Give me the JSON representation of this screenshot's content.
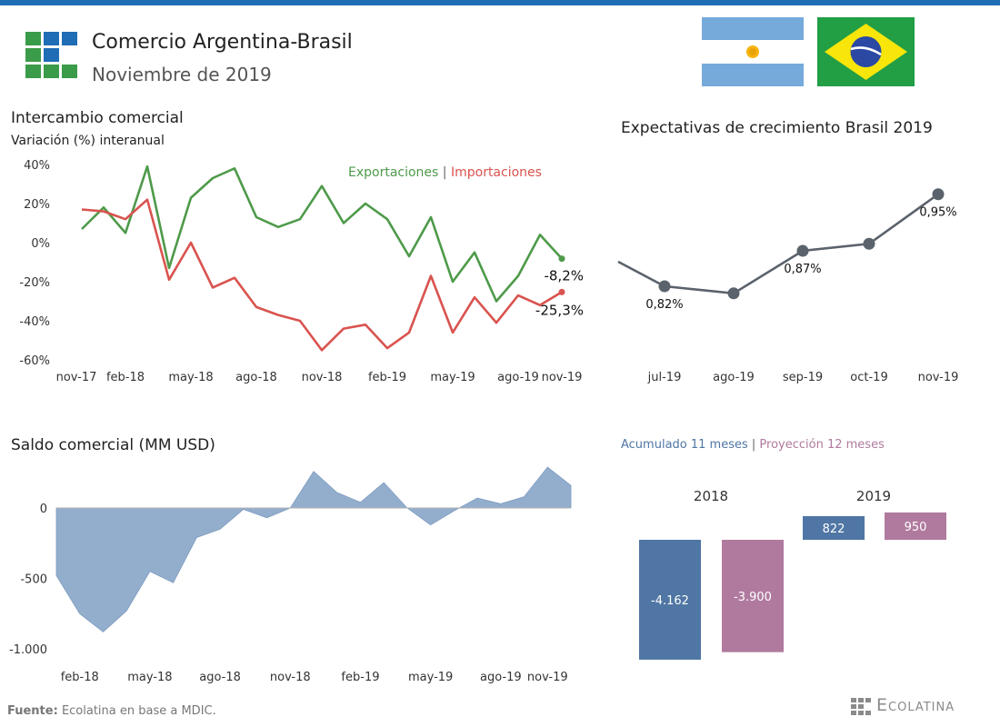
{
  "header": {
    "title": "Comercio Argentina-Brasil",
    "subtitle": "Noviembre de 2019"
  },
  "colors": {
    "blue_bar": "#1f6db5",
    "logo_blue": "#1f6db5",
    "logo_green": "#3a9b48",
    "exports": "#4e9a4a",
    "imports": "#d9534f",
    "gray_line": "#5a626b",
    "area": "#93aecd",
    "acum": "#4f76a4",
    "proy": "#b07a9e"
  },
  "panels": {
    "intercambio": {
      "title": "Intercambio comercial",
      "subtitle": "Variación (%) interanual"
    },
    "expectativas": {
      "title": "Expectativas de crecimiento Brasil 2019"
    },
    "saldo": {
      "title": "Saldo comercial (MM USD)"
    }
  },
  "footer": {
    "label": "Fuente:",
    "text": "Ecolatina en base a MDIC."
  },
  "brand": "Ecolatina",
  "chart_data": [
    {
      "id": "intercambio",
      "type": "line",
      "ylim": [
        -60,
        40
      ],
      "y_ticks": [
        "40%",
        "20%",
        "0%",
        "-20%",
        "-40%",
        "-60%"
      ],
      "x_ticks": [
        "nov-17",
        "feb-18",
        "may-18",
        "ago-18",
        "nov-18",
        "feb-19",
        "may-19",
        "ago-19",
        "nov-19"
      ],
      "legend": {
        "exports": "Exportaciones",
        "separator": "|",
        "imports": "Importaciones"
      },
      "series": [
        {
          "name": "Exportaciones",
          "values": [
            7,
            18,
            5,
            39,
            -13,
            23,
            33,
            38,
            13,
            8,
            12,
            29,
            10,
            20,
            12,
            -7,
            13,
            -20,
            -5,
            -30,
            -17,
            4,
            -8.2
          ]
        },
        {
          "name": "Importaciones",
          "values": [
            17,
            16,
            12,
            22,
            -19,
            0,
            -23,
            -18,
            -33,
            -37,
            -40,
            -55,
            -44,
            -42,
            -54,
            -46,
            -17,
            -46,
            -28,
            -41,
            -27,
            -32,
            -25.3
          ]
        }
      ],
      "end_labels": {
        "exports": "-8,2%",
        "imports": "-25,3%"
      }
    },
    {
      "id": "expectativas",
      "type": "line",
      "x_ticks": [
        "jul-19",
        "ago-19",
        "sep-19",
        "oct-19",
        "nov-19"
      ],
      "values": [
        0.82,
        0.81,
        0.87,
        0.88,
        0.95
      ],
      "data_labels": [
        "0,82%",
        "",
        "0,87%",
        "",
        "0,95%"
      ],
      "ylim": [
        0.76,
        1.0
      ]
    },
    {
      "id": "saldo",
      "type": "area",
      "ylim": [
        -1000,
        250
      ],
      "y_ticks": [
        "0",
        "-500",
        "-1.000"
      ],
      "y_tick_values": [
        0,
        -500,
        -1000
      ],
      "x_ticks": [
        "feb-18",
        "may-18",
        "ago-18",
        "nov-18",
        "feb-19",
        "may-19",
        "ago-19",
        "nov-19"
      ],
      "values": [
        -480,
        -750,
        -880,
        -730,
        -450,
        -530,
        -210,
        -150,
        -10,
        -70,
        0,
        260,
        110,
        40,
        180,
        0,
        -120,
        -20,
        70,
        30,
        80,
        290,
        160
      ]
    },
    {
      "id": "acumulado",
      "type": "bar",
      "legend": {
        "acum": "Acumulado 11 meses",
        "separator": "|",
        "proy": "Proyección 12 meses"
      },
      "categories": [
        "2018",
        "2019"
      ],
      "series": [
        {
          "name": "Acumulado 11 meses",
          "values": [
            -4162,
            822
          ],
          "labels": [
            "-4.162",
            "822"
          ]
        },
        {
          "name": "Proyección 12 meses",
          "values": [
            -3900,
            950
          ],
          "labels": [
            "-3.900",
            "950"
          ]
        }
      ]
    }
  ]
}
